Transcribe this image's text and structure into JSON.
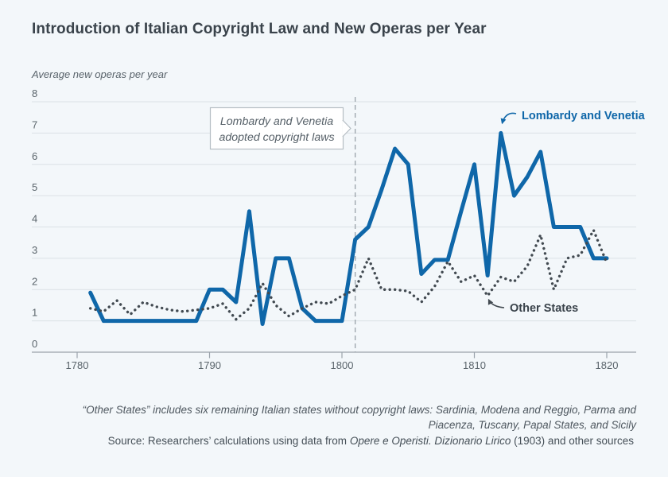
{
  "page": {
    "title": "Introduction of Italian Copyright Law and New Operas per Year"
  },
  "chart_data": {
    "type": "line",
    "title": "Introduction of Italian Copyright Law and New Operas per Year",
    "ylabel": "Average new operas per year",
    "xlabel": "",
    "ylim": [
      0,
      8
    ],
    "xlim": [
      1780,
      1822
    ],
    "grid": true,
    "y_ticks": [
      0,
      1,
      2,
      3,
      4,
      5,
      6,
      7,
      8
    ],
    "x_ticks": [
      1780,
      1790,
      1800,
      1810,
      1820
    ],
    "grid_color": "#dbe1e6",
    "axis_color": "#9aa3ab",
    "event_line": {
      "x": 1801,
      "color": "#9aa2a9",
      "label_line1": "Lombardy and Venetia",
      "label_line2": "adopted copyright laws"
    },
    "x": [
      1781,
      1782,
      1783,
      1784,
      1785,
      1786,
      1787,
      1788,
      1789,
      1790,
      1791,
      1792,
      1793,
      1794,
      1795,
      1796,
      1797,
      1798,
      1799,
      1800,
      1801,
      1802,
      1803,
      1804,
      1805,
      1806,
      1807,
      1808,
      1809,
      1810,
      1811,
      1812,
      1813,
      1814,
      1815,
      1816,
      1817,
      1818,
      1819,
      1820
    ],
    "series": [
      {
        "name": "Lombardy and Venetia",
        "style": "solid",
        "color": "#0f67a9",
        "values": [
          1.9,
          1,
          1,
          1,
          1,
          1,
          1,
          1,
          1,
          2,
          2,
          1.6,
          4.5,
          0.9,
          3,
          3,
          1.4,
          1,
          1,
          1,
          3.6,
          4,
          5.2,
          6.5,
          6,
          2.5,
          2.95,
          2.95,
          4.5,
          6,
          2.45,
          7,
          5,
          5.6,
          6.4,
          4,
          4,
          4,
          3,
          3
        ]
      },
      {
        "name": "Other States",
        "style": "dotted",
        "color": "#424a51",
        "values": [
          1.4,
          1.3,
          1.65,
          1.2,
          1.6,
          1.45,
          1.35,
          1.3,
          1.35,
          1.4,
          1.55,
          1.05,
          1.4,
          2.2,
          1.5,
          1.15,
          1.4,
          1.6,
          1.55,
          1.8,
          2.0,
          3.0,
          2.0,
          2.0,
          1.95,
          1.6,
          2.1,
          2.9,
          2.25,
          2.45,
          1.8,
          2.4,
          2.25,
          2.75,
          3.75,
          2.0,
          3.0,
          3.1,
          3.9,
          2.85
        ]
      }
    ],
    "legend_position": "inline-annotations"
  },
  "footnote": {
    "line1": "“Other States” includes six remaining Italian states without copyright laws: Sardinia, Modena and Reggio, Parma and",
    "line2": "Piacenza, Tuscany, Papal States, and Sicily"
  },
  "source": {
    "prefix": "Source: Researchers’ calculations using data from ",
    "italic": "Opere e Operisti. Dizionario Lirico",
    "suffix": " (1903) and other sources"
  }
}
